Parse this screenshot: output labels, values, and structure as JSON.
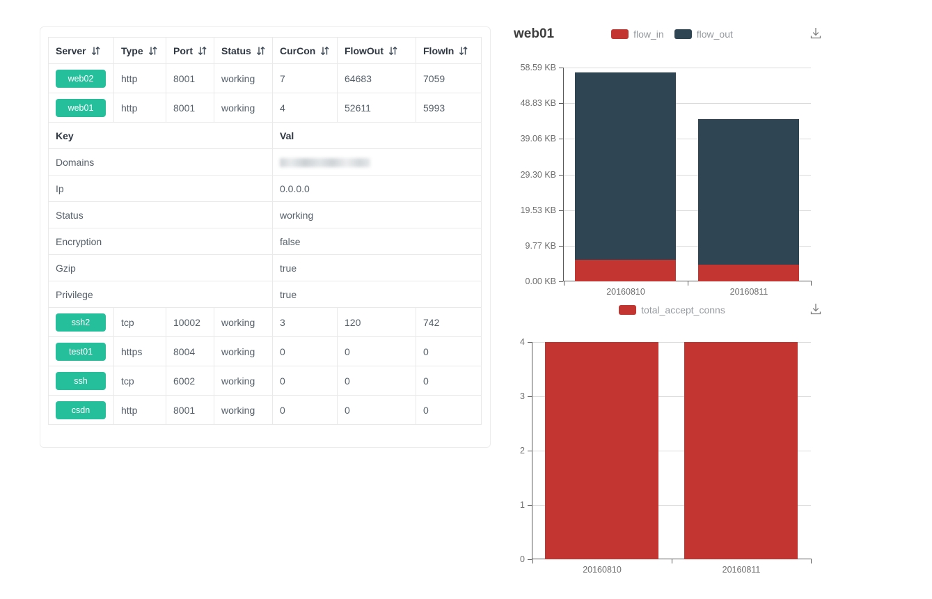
{
  "colors": {
    "badge_green": "#26bf9c",
    "flow_in_red": "#c23531",
    "flow_out_slate": "#2f4554",
    "grid_line": "#dadada",
    "axis_line": "#5a5a5a"
  },
  "icons": {
    "sort": "sort-arrows-icon",
    "download": "save-as-image-icon"
  },
  "table": {
    "columns": [
      {
        "label": "Server"
      },
      {
        "label": "Type"
      },
      {
        "label": "Port"
      },
      {
        "label": "Status"
      },
      {
        "label": "CurCon"
      },
      {
        "label": "FlowOut"
      },
      {
        "label": "FlowIn"
      }
    ],
    "top_rows": [
      {
        "server": "web02",
        "type": "http",
        "port": "8001",
        "status": "working",
        "curcon": "7",
        "flowout": "64683",
        "flowin": "7059"
      },
      {
        "server": "web01",
        "type": "http",
        "port": "8001",
        "status": "working",
        "curcon": "4",
        "flowout": "52611",
        "flowin": "5993"
      }
    ],
    "detail": {
      "key_header": "Key",
      "val_header": "Val",
      "rows": [
        {
          "key": "Domains",
          "val": "",
          "redacted": true
        },
        {
          "key": "Ip",
          "val": "0.0.0.0"
        },
        {
          "key": "Status",
          "val": "working"
        },
        {
          "key": "Encryption",
          "val": "false"
        },
        {
          "key": "Gzip",
          "val": "true"
        },
        {
          "key": "Privilege",
          "val": "true"
        }
      ]
    },
    "bottom_rows": [
      {
        "server": "ssh2",
        "type": "tcp",
        "port": "10002",
        "status": "working",
        "curcon": "3",
        "flowout": "120",
        "flowin": "742"
      },
      {
        "server": "test01",
        "type": "https",
        "port": "8004",
        "status": "working",
        "curcon": "0",
        "flowout": "0",
        "flowin": "0"
      },
      {
        "server": "ssh",
        "type": "tcp",
        "port": "6002",
        "status": "working",
        "curcon": "0",
        "flowout": "0",
        "flowin": "0"
      },
      {
        "server": "csdn",
        "type": "http",
        "port": "8001",
        "status": "working",
        "curcon": "0",
        "flowout": "0",
        "flowin": "0"
      }
    ]
  },
  "chart_data": [
    {
      "type": "bar",
      "stacked": true,
      "title": "web01",
      "unit": "KB",
      "categories": [
        "20160810",
        "20160811"
      ],
      "series": [
        {
          "name": "flow_in",
          "color": "#c23531",
          "values": [
            5.85,
            4.6
          ]
        },
        {
          "name": "flow_out",
          "color": "#2f4554",
          "values": [
            51.38,
            39.8
          ]
        }
      ],
      "legend": [
        "flow_in",
        "flow_out"
      ],
      "legend_position": "top-center",
      "y_ticks": [
        "58.59 KB",
        "48.83 KB",
        "39.06 KB",
        "29.30 KB",
        "19.53 KB",
        "9.77 KB",
        "0.00 KB"
      ],
      "ymax": 58.59,
      "grid": true
    },
    {
      "type": "bar",
      "stacked": false,
      "title": "",
      "unit": "conns",
      "categories": [
        "20160810",
        "20160811"
      ],
      "series": [
        {
          "name": "total_accept_conns",
          "color": "#c23531",
          "values": [
            4,
            4
          ]
        }
      ],
      "legend": [
        "total_accept_conns"
      ],
      "legend_position": "top-center",
      "y_ticks": [
        "4",
        "3",
        "2",
        "1",
        "0"
      ],
      "ymax": 4,
      "grid": true
    }
  ]
}
